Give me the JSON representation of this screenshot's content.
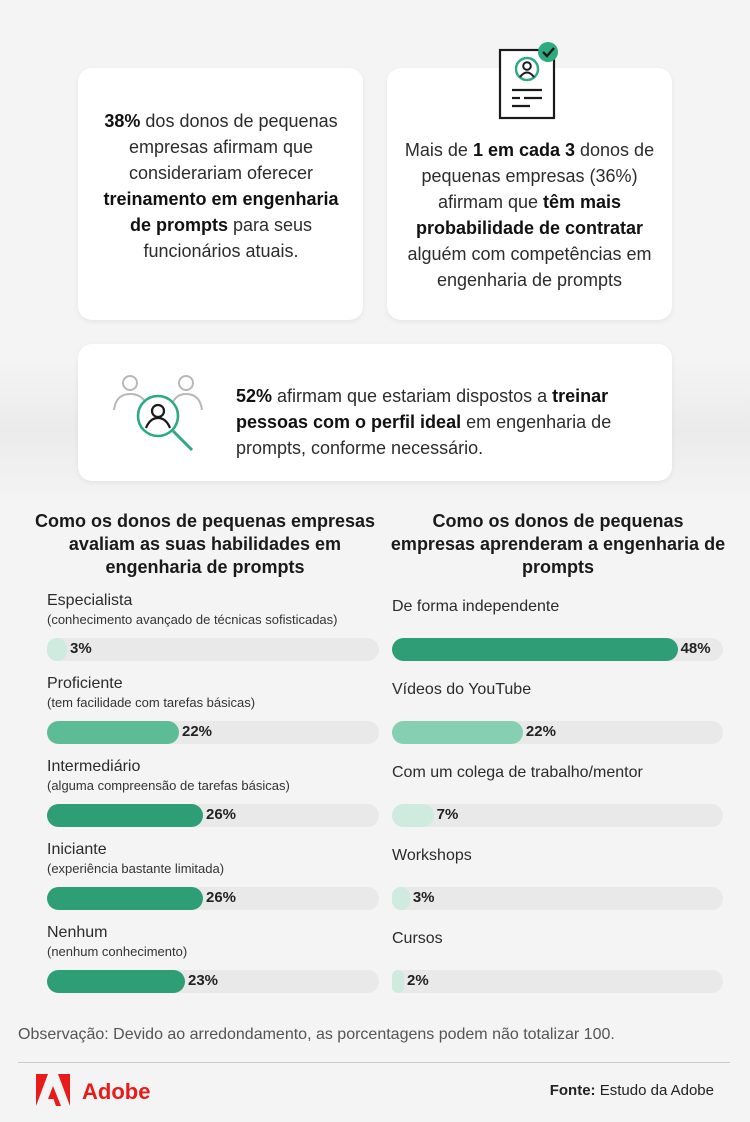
{
  "stat_cards": {
    "card1": {
      "parts": [
        {
          "t": "38%",
          "b": true
        },
        {
          "t": " dos donos de pequenas empresas afirmam que considerariam oferecer ",
          "b": false
        },
        {
          "t": "treinamento em engenharia de prompts",
          "b": true
        },
        {
          "t": " para seus funcionários atuais.",
          "b": false
        }
      ]
    },
    "card2": {
      "icon": "document-person-check-icon",
      "parts": [
        {
          "t": "Mais de ",
          "b": false
        },
        {
          "t": "1 em cada 3",
          "b": true
        },
        {
          "t": " donos de pequenas empresas (36%) afirmam que ",
          "b": false
        },
        {
          "t": "têm mais probabilidade de contratar",
          "b": true
        },
        {
          "t": " alguém com competências em engenharia de prompts",
          "b": false
        }
      ]
    },
    "card3": {
      "icon": "people-search-icon",
      "parts": [
        {
          "t": "52%",
          "b": true
        },
        {
          "t": " afirmam que estariam dispostos a ",
          "b": false
        },
        {
          "t": "treinar pessoas com o perfil ideal",
          "b": true
        },
        {
          "t": " em engenharia de prompts, conforme necessário.",
          "b": false
        }
      ]
    }
  },
  "left_column": {
    "title": "Como os donos de pequenas empresas avaliam as suas habilidades em engenharia de prompts",
    "items": [
      {
        "label": "Especialista",
        "sub": "(conhecimento avançado de técnicas sofisticadas)",
        "value": 3,
        "display": "3%"
      },
      {
        "label": "Proficiente",
        "sub": "(tem facilidade com tarefas básicas)",
        "value": 22,
        "display": "22%"
      },
      {
        "label": "Intermediário",
        "sub": "(alguma compreensão de tarefas básicas)",
        "value": 26,
        "display": "26%"
      },
      {
        "label": "Iniciante",
        "sub": "(experiência bastante limitada)",
        "value": 26,
        "display": "26%"
      },
      {
        "label": "Nenhum",
        "sub": "(nenhum conhecimento)",
        "value": 23,
        "display": "23%"
      }
    ]
  },
  "right_column": {
    "title": "Como os donos de pequenas empresas aprenderam a engenharia de prompts",
    "items": [
      {
        "label": "De forma independente",
        "value": 48,
        "display": "48%"
      },
      {
        "label": "Vídeos do YouTube",
        "value": 22,
        "display": "22%"
      },
      {
        "label": "Com um colega de trabalho/mentor",
        "value": 7,
        "display": "7%"
      },
      {
        "label": "Workshops",
        "value": 3,
        "display": "3%"
      },
      {
        "label": "Cursos",
        "value": 2,
        "display": "2%"
      }
    ]
  },
  "chart_data": [
    {
      "type": "bar",
      "title": "Como os donos de pequenas empresas avaliam as suas habilidades em engenharia de prompts",
      "categories": [
        "Especialista",
        "Proficiente",
        "Intermediário",
        "Iniciante",
        "Nenhum"
      ],
      "values": [
        3,
        22,
        26,
        26,
        23
      ],
      "xlabel": "",
      "ylabel": "",
      "ylim": [
        0,
        100
      ]
    },
    {
      "type": "bar",
      "title": "Como os donos de pequenas empresas aprenderam a engenharia de prompts",
      "categories": [
        "De forma independente",
        "Vídeos do YouTube",
        "Com um colega de trabalho/mentor",
        "Workshops",
        "Cursos"
      ],
      "values": [
        48,
        22,
        7,
        3,
        2
      ],
      "xlabel": "",
      "ylabel": "",
      "ylim": [
        0,
        100
      ]
    }
  ],
  "footer": {
    "note": "Observação: Devido ao arredondamento, as porcentagens podem não totalizar 100.",
    "brand": "Adobe",
    "source_label": "Fonte:",
    "source_value": " Estudo da Adobe"
  },
  "colors": {
    "accent": "#2daa7e",
    "bar_dark": "#2e9e77",
    "bar_mid": "#5cbc96",
    "bar_light": "#86cfb3",
    "bar_pale": "#cfeadf",
    "track": "#e9e9e9",
    "adobe_red": "#e81a1a"
  }
}
